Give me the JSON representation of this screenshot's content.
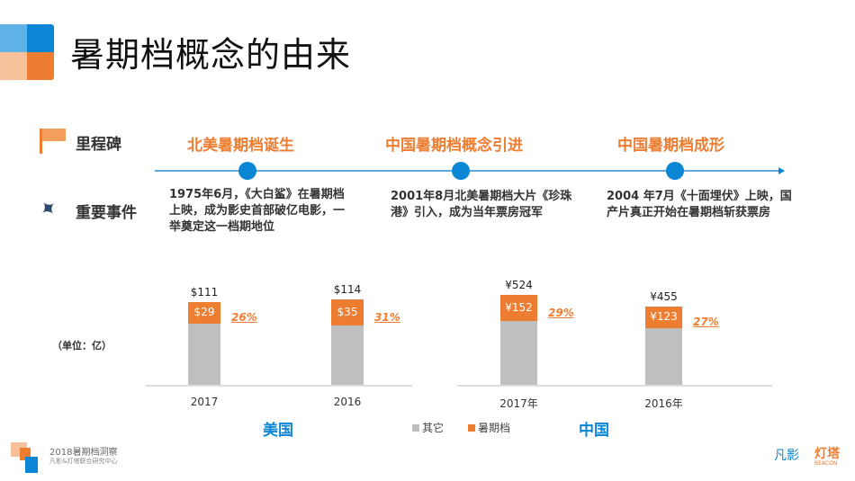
{
  "header": {
    "title": "暑期档概念的由来"
  },
  "timeline": {
    "milestone_label": "里程碑",
    "event_label": "重要事件",
    "milestones": [
      "北美暑期档诞生",
      "中国暑期档概念引进",
      "中国暑期档成形"
    ],
    "events": [
      [
        "1975年6月，《大白鲨》在暑期档",
        "上映，成为影史首部破亿电影，一",
        "举奠定这一档期地位"
      ],
      [
        "2001年8月北美暑期档大片《珍珠",
        "港》引入，成为当年票房冠军"
      ],
      [
        "2004 年7月《十面埋伏》上映，国",
        "产片真正开始在暑期档斩获票房"
      ]
    ]
  },
  "unit_label": "（单位：亿）",
  "colors": {
    "summer": "#ed7d31",
    "other": "#bfbfbf",
    "accent": "#0b86d4"
  },
  "chart_data": [
    {
      "type": "bar",
      "stacked": true,
      "group_label": "美国",
      "categories": [
        "2017",
        "2016"
      ],
      "total_labels": [
        "$111",
        "$114"
      ],
      "totals": [
        111,
        114
      ],
      "series": [
        {
          "name": "其它",
          "values": [
            82,
            79
          ]
        },
        {
          "name": "暑期档",
          "values": [
            29,
            35
          ],
          "labels": [
            "$29",
            "$35"
          ]
        }
      ],
      "share_labels": [
        "26%",
        "31%"
      ]
    },
    {
      "type": "bar",
      "stacked": true,
      "group_label": "中国",
      "categories": [
        "2017年",
        "2016年"
      ],
      "total_labels": [
        "¥524",
        "¥455"
      ],
      "totals": [
        524,
        455
      ],
      "series": [
        {
          "name": "其它",
          "values": [
            372,
            332
          ]
        },
        {
          "name": "暑期档",
          "values": [
            152,
            123
          ],
          "labels": [
            "¥152",
            "¥123"
          ]
        }
      ],
      "share_labels": [
        "29%",
        "27%"
      ]
    }
  ],
  "legend": [
    "其它",
    "暑期档"
  ],
  "footer": {
    "title": "2018暑期档洞察",
    "subtitle": "凡影&灯塔联合研究中心",
    "brand1": "凡影",
    "brand2": "灯塔",
    "brand2_en": "BEACON"
  }
}
